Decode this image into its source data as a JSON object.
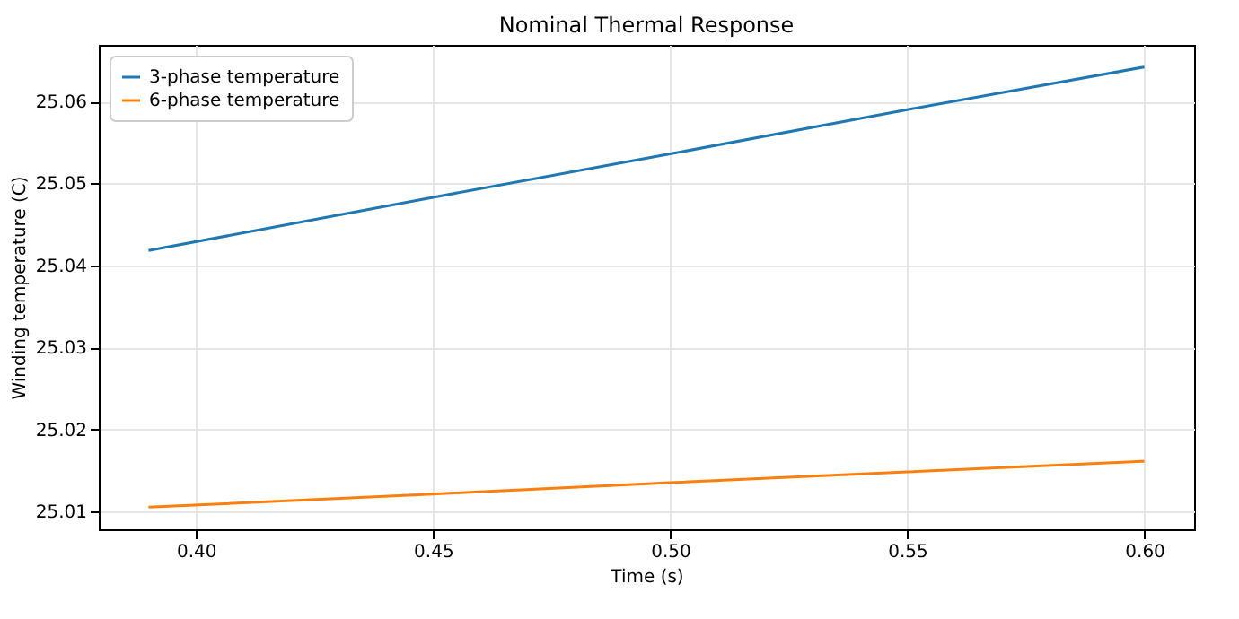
{
  "chart_data": {
    "type": "line",
    "title": "Nominal Thermal Response",
    "xlabel": "Time (s)",
    "ylabel": "Winding temperature (C)",
    "x": [
      0.39,
      0.45,
      0.5,
      0.55,
      0.6
    ],
    "series": [
      {
        "name": "3-phase temperature",
        "color": "#1f77b4",
        "values": [
          25.0418,
          25.0483,
          25.0536,
          25.059,
          25.0642
        ]
      },
      {
        "name": "6-phase temperature",
        "color": "#ff7f0e",
        "values": [
          25.0105,
          25.0121,
          25.0135,
          25.0148,
          25.0161
        ]
      }
    ],
    "xlim": [
      0.3795,
      0.6105
    ],
    "xticks": [
      {
        "value": 0.4,
        "label": "0.40"
      },
      {
        "value": 0.45,
        "label": "0.45"
      },
      {
        "value": 0.5,
        "label": "0.50"
      },
      {
        "value": 0.55,
        "label": "0.55"
      },
      {
        "value": 0.6,
        "label": "0.60"
      }
    ],
    "ylim": [
      25.0078,
      25.0669
    ],
    "yticks": [
      {
        "value": 25.01,
        "label": "25.01"
      },
      {
        "value": 25.02,
        "label": "25.02"
      },
      {
        "value": 25.03,
        "label": "25.03"
      },
      {
        "value": 25.04,
        "label": "25.04"
      },
      {
        "value": 25.05,
        "label": "25.05"
      },
      {
        "value": 25.06,
        "label": "25.06"
      }
    ],
    "grid": true,
    "legend": "top left",
    "line_style": "solid",
    "marker": "none"
  }
}
